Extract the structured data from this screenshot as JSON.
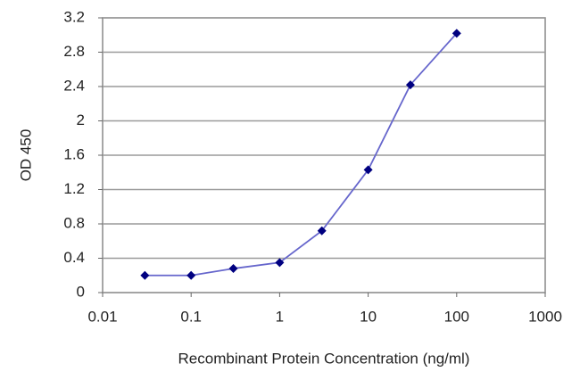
{
  "chart_data": {
    "type": "line",
    "x_label": "Recombinant Protein Concentration (ng/ml)",
    "y_label": "OD 450",
    "x": [
      0.03,
      0.1,
      0.3,
      1,
      3,
      10,
      30,
      100
    ],
    "series": [
      {
        "color": "#6666cc",
        "marker_color": "#000080",
        "values": [
          0.2,
          0.2,
          0.28,
          0.35,
          0.72,
          1.43,
          2.42,
          3.02
        ]
      }
    ],
    "xscale": "log",
    "xlim": [
      0.01,
      1000
    ],
    "xticks": [
      0.01,
      0.1,
      1,
      10,
      100,
      1000
    ],
    "ylim": [
      0,
      3.2
    ],
    "yticks": [
      0,
      0.4,
      0.8,
      1.2,
      1.6,
      2,
      2.4,
      2.8,
      3.2
    ],
    "grid": true
  }
}
